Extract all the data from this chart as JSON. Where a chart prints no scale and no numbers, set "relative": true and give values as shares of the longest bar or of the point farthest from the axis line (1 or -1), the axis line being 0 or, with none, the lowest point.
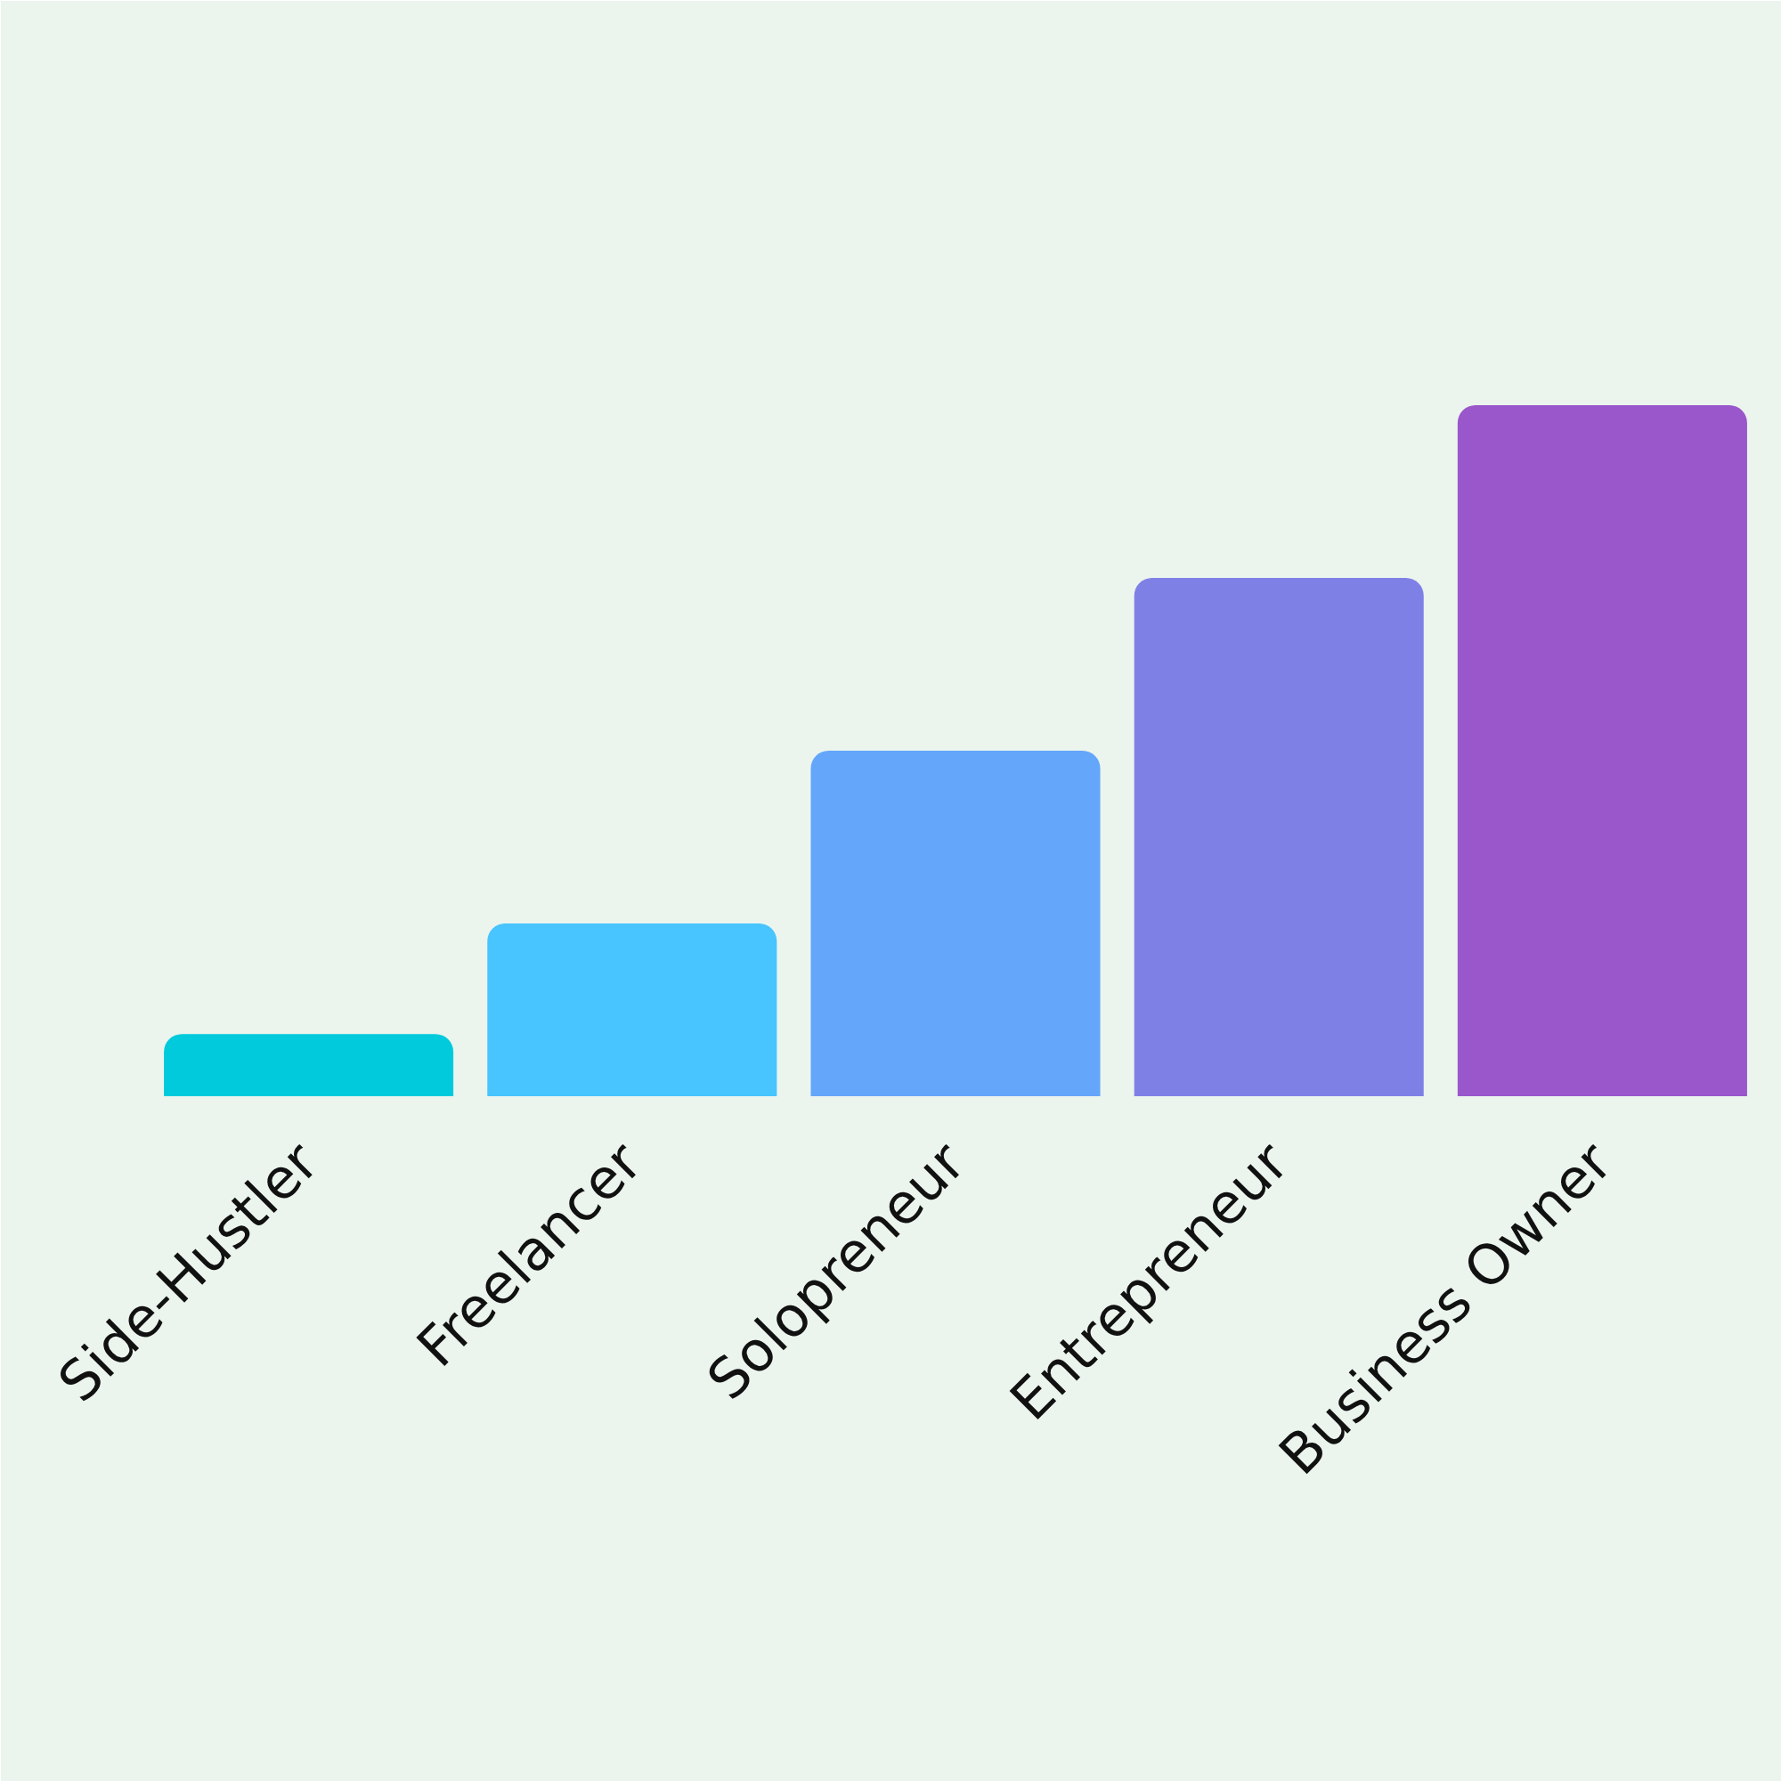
{
  "chart_data": {
    "type": "bar",
    "relative": true,
    "categories": [
      "Side-Hustler",
      "Freelancer",
      "Solopreneur",
      "Entrepreneur",
      "Business Owner"
    ],
    "values": [
      0.09,
      0.25,
      0.5,
      0.75,
      1
    ],
    "colors": [
      "#00cadb",
      "#48c4fe",
      "#64a6f9",
      "#7f80e6",
      "#9a57cb"
    ]
  }
}
